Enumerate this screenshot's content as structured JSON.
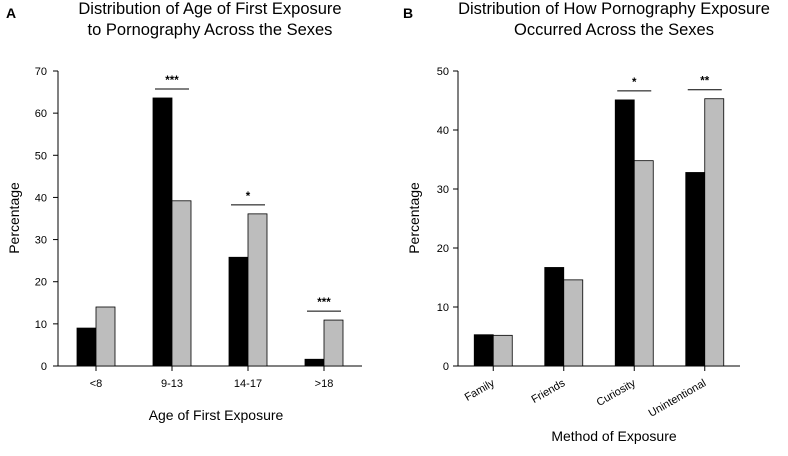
{
  "chart_data": [
    {
      "type": "bar",
      "panel": "A",
      "title_lines": [
        "Distribution of Age of First Exposure",
        "to Pornography Across the Sexes"
      ],
      "xlabel": "Age of First Exposure",
      "ylabel": "Percentage",
      "ylim": [
        0,
        70
      ],
      "yticks": [
        0,
        10,
        20,
        30,
        40,
        50,
        60,
        70
      ],
      "categories": [
        "<8",
        "9-13",
        "14-17",
        ">18"
      ],
      "tick_rotation": 0,
      "series": [
        {
          "color": "#000000",
          "values": [
            9,
            63.6,
            25.8,
            1.6
          ]
        },
        {
          "color": "#bdbdbd",
          "values": [
            14,
            39.2,
            36.1,
            10.9
          ]
        }
      ],
      "significance": [
        "",
        "***",
        "*",
        "***"
      ],
      "grid": false,
      "legend": "none"
    },
    {
      "type": "bar",
      "panel": "B",
      "title_lines": [
        "Distribution of How Pornography Exposure",
        "Occurred Across the Sexes"
      ],
      "xlabel": "Method of Exposure",
      "ylabel": "Percentage",
      "ylim": [
        0,
        50
      ],
      "yticks": [
        0,
        10,
        20,
        30,
        40,
        50
      ],
      "categories": [
        "Family",
        "Friends",
        "Curiosity",
        "Unintentional"
      ],
      "tick_rotation": -30,
      "series": [
        {
          "color": "#000000",
          "values": [
            5.3,
            16.7,
            45.1,
            32.8
          ]
        },
        {
          "color": "#bdbdbd",
          "values": [
            5.2,
            14.6,
            34.8,
            45.3
          ]
        }
      ],
      "significance": [
        "",
        "",
        "*",
        "**"
      ],
      "grid": false,
      "legend": "none"
    }
  ]
}
